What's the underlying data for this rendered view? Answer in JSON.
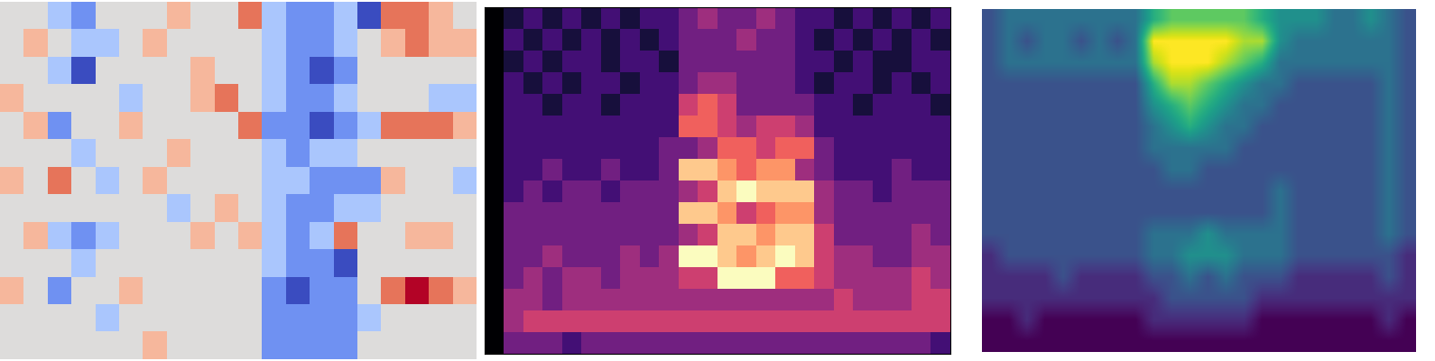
{
  "chart_data": [
    {
      "type": "heatmap",
      "tick_labels": false,
      "cells": [
        [
          6,
          6,
          5,
          4,
          6,
          6,
          6,
          7,
          6,
          6,
          8,
          5,
          4,
          4,
          5,
          3,
          8,
          8,
          7,
          6
        ],
        [
          6,
          7,
          6,
          5,
          5,
          6,
          7,
          6,
          6,
          6,
          6,
          5,
          4,
          4,
          5,
          6,
          7,
          8,
          7,
          7
        ],
        [
          6,
          6,
          5,
          3,
          6,
          6,
          6,
          6,
          7,
          6,
          6,
          5,
          4,
          3,
          4,
          6,
          6,
          6,
          6,
          6
        ],
        [
          7,
          6,
          6,
          6,
          6,
          5,
          6,
          6,
          7,
          8,
          6,
          5,
          4,
          4,
          5,
          6,
          6,
          6,
          5,
          5
        ],
        [
          6,
          7,
          4,
          6,
          6,
          7,
          6,
          6,
          6,
          6,
          8,
          4,
          4,
          3,
          4,
          5,
          8,
          8,
          8,
          7
        ],
        [
          6,
          6,
          6,
          5,
          6,
          6,
          6,
          7,
          6,
          6,
          6,
          5,
          4,
          5,
          5,
          6,
          6,
          6,
          6,
          6
        ],
        [
          7,
          6,
          8,
          6,
          5,
          6,
          7,
          6,
          6,
          6,
          6,
          5,
          5,
          4,
          4,
          4,
          7,
          6,
          6,
          5
        ],
        [
          6,
          6,
          6,
          6,
          6,
          6,
          6,
          5,
          6,
          7,
          6,
          5,
          4,
          4,
          5,
          5,
          6,
          6,
          6,
          6
        ],
        [
          6,
          7,
          5,
          4,
          5,
          6,
          6,
          6,
          7,
          6,
          7,
          5,
          4,
          5,
          8,
          6,
          6,
          7,
          7,
          6
        ],
        [
          6,
          6,
          6,
          5,
          6,
          6,
          6,
          6,
          6,
          6,
          6,
          5,
          4,
          4,
          3,
          6,
          6,
          6,
          6,
          6
        ],
        [
          7,
          6,
          4,
          6,
          6,
          7,
          6,
          6,
          6,
          6,
          6,
          4,
          3,
          4,
          4,
          6,
          8,
          9,
          8,
          7
        ],
        [
          6,
          6,
          6,
          6,
          5,
          6,
          6,
          6,
          6,
          6,
          6,
          4,
          4,
          4,
          4,
          5,
          6,
          6,
          6,
          6
        ],
        [
          6,
          6,
          6,
          6,
          6,
          6,
          7,
          6,
          6,
          6,
          6,
          4,
          4,
          4,
          4,
          6,
          6,
          6,
          6,
          6
        ]
      ]
    },
    {
      "type": "heatmap",
      "tick_labels": false,
      "cells": [
        [
          0,
          1,
          2,
          1,
          2,
          1,
          2,
          1,
          2,
          2,
          3,
          4,
          3,
          3,
          4,
          3,
          2,
          2,
          1,
          2,
          1,
          2,
          1,
          2
        ],
        [
          0,
          2,
          1,
          2,
          1,
          2,
          1,
          2,
          1,
          2,
          3,
          3,
          3,
          4,
          3,
          3,
          2,
          1,
          2,
          1,
          2,
          1,
          2,
          1
        ],
        [
          0,
          1,
          2,
          1,
          2,
          2,
          1,
          2,
          2,
          1,
          3,
          3,
          3,
          3,
          3,
          3,
          2,
          2,
          1,
          2,
          1,
          1,
          2,
          2
        ],
        [
          0,
          2,
          1,
          2,
          1,
          2,
          2,
          1,
          2,
          2,
          3,
          4,
          4,
          3,
          3,
          3,
          2,
          1,
          2,
          2,
          1,
          2,
          1,
          2
        ],
        [
          0,
          2,
          2,
          1,
          2,
          2,
          1,
          2,
          2,
          2,
          5,
          6,
          5,
          3,
          3,
          3,
          3,
          2,
          2,
          1,
          2,
          2,
          2,
          1
        ],
        [
          0,
          2,
          2,
          2,
          2,
          2,
          2,
          2,
          2,
          2,
          6,
          6,
          5,
          4,
          5,
          5,
          4,
          2,
          2,
          2,
          2,
          2,
          2,
          2
        ],
        [
          0,
          2,
          2,
          2,
          2,
          2,
          2,
          2,
          2,
          3,
          3,
          4,
          6,
          6,
          5,
          6,
          6,
          3,
          2,
          2,
          2,
          2,
          2,
          2
        ],
        [
          0,
          2,
          2,
          3,
          2,
          2,
          3,
          2,
          2,
          3,
          8,
          8,
          7,
          6,
          7,
          7,
          4,
          3,
          2,
          2,
          2,
          3,
          2,
          2
        ],
        [
          0,
          2,
          3,
          2,
          3,
          3,
          2,
          3,
          3,
          3,
          4,
          5,
          8,
          9,
          8,
          8,
          8,
          4,
          3,
          3,
          2,
          3,
          3,
          3
        ],
        [
          0,
          3,
          3,
          3,
          3,
          3,
          3,
          3,
          3,
          3,
          8,
          8,
          7,
          5,
          6,
          7,
          7,
          4,
          3,
          3,
          3,
          3,
          3,
          3
        ],
        [
          0,
          3,
          3,
          3,
          3,
          3,
          3,
          3,
          3,
          3,
          4,
          5,
          8,
          8,
          7,
          8,
          8,
          5,
          3,
          3,
          3,
          3,
          4,
          3
        ],
        [
          0,
          3,
          3,
          4,
          3,
          3,
          3,
          4,
          3,
          4,
          9,
          9,
          8,
          7,
          8,
          9,
          8,
          5,
          4,
          4,
          3,
          3,
          4,
          4
        ],
        [
          0,
          3,
          4,
          3,
          4,
          4,
          3,
          4,
          4,
          4,
          5,
          5,
          9,
          9,
          9,
          6,
          6,
          5,
          4,
          4,
          4,
          4,
          5,
          4
        ],
        [
          0,
          4,
          4,
          3,
          4,
          4,
          4,
          4,
          4,
          4,
          4,
          4,
          4,
          4,
          4,
          4,
          4,
          4,
          5,
          4,
          4,
          4,
          5,
          5
        ],
        [
          0,
          4,
          5,
          5,
          5,
          5,
          5,
          5,
          5,
          5,
          5,
          5,
          5,
          5,
          5,
          5,
          5,
          5,
          5,
          5,
          5,
          5,
          5,
          5
        ],
        [
          0,
          3,
          3,
          3,
          2,
          3,
          3,
          3,
          3,
          3,
          3,
          3,
          3,
          3,
          3,
          3,
          3,
          3,
          3,
          3,
          3,
          3,
          3,
          2
        ]
      ]
    },
    {
      "type": "heatmap",
      "tick_labels": false,
      "cells": [
        [
          3,
          4,
          4,
          4,
          4,
          4,
          4,
          4,
          4,
          6,
          7,
          7,
          7,
          7,
          7,
          6,
          5,
          5,
          5,
          4,
          4,
          5,
          4,
          3
        ],
        [
          3,
          4,
          3,
          4,
          4,
          3,
          4,
          3,
          4,
          9,
          9,
          9,
          9,
          9,
          8,
          8,
          5,
          4,
          4,
          4,
          4,
          4,
          4,
          3
        ],
        [
          3,
          4,
          4,
          4,
          4,
          4,
          4,
          4,
          4,
          8,
          9,
          9,
          9,
          8,
          7,
          6,
          4,
          4,
          4,
          4,
          4,
          4,
          4,
          3
        ],
        [
          3,
          3,
          3,
          3,
          3,
          3,
          3,
          3,
          3,
          6,
          8,
          8,
          7,
          6,
          5,
          4,
          4,
          3,
          3,
          3,
          3,
          3,
          4,
          3
        ],
        [
          3,
          3,
          3,
          3,
          3,
          3,
          3,
          3,
          3,
          5,
          6,
          7,
          6,
          5,
          4,
          4,
          3,
          3,
          3,
          3,
          3,
          3,
          4,
          3
        ],
        [
          3,
          3,
          3,
          3,
          3,
          3,
          3,
          3,
          3,
          4,
          5,
          6,
          5,
          4,
          4,
          3,
          3,
          3,
          3,
          3,
          3,
          3,
          4,
          3
        ],
        [
          3,
          3,
          3,
          3,
          3,
          3,
          3,
          3,
          3,
          4,
          4,
          4,
          4,
          4,
          3,
          3,
          3,
          3,
          3,
          3,
          3,
          3,
          4,
          3
        ],
        [
          3,
          3,
          3,
          3,
          3,
          3,
          3,
          3,
          3,
          3,
          4,
          4,
          3,
          3,
          3,
          3,
          3,
          3,
          3,
          3,
          3,
          3,
          4,
          3
        ],
        [
          3,
          3,
          3,
          3,
          3,
          3,
          3,
          3,
          3,
          3,
          3,
          3,
          3,
          3,
          3,
          3,
          4,
          3,
          3,
          3,
          3,
          3,
          4,
          3
        ],
        [
          3,
          3,
          3,
          3,
          3,
          3,
          3,
          3,
          3,
          3,
          3,
          3,
          3,
          3,
          3,
          3,
          4,
          3,
          3,
          3,
          3,
          3,
          4,
          3
        ],
        [
          3,
          3,
          3,
          3,
          3,
          3,
          3,
          3,
          3,
          4,
          4,
          4,
          5,
          4,
          4,
          4,
          4,
          3,
          3,
          3,
          3,
          3,
          4,
          3
        ],
        [
          2,
          3,
          3,
          3,
          3,
          3,
          3,
          3,
          3,
          4,
          4,
          5,
          5,
          5,
          4,
          4,
          4,
          3,
          3,
          3,
          3,
          3,
          3,
          2
        ],
        [
          2,
          2,
          2,
          2,
          3,
          2,
          2,
          2,
          2,
          3,
          3,
          4,
          3,
          4,
          3,
          3,
          3,
          2,
          2,
          2,
          2,
          2,
          3,
          2
        ],
        [
          2,
          2,
          2,
          2,
          2,
          2,
          2,
          2,
          2,
          2,
          3,
          3,
          3,
          3,
          3,
          2,
          2,
          2,
          2,
          2,
          2,
          2,
          2,
          2
        ],
        [
          1,
          1,
          2,
          1,
          1,
          1,
          1,
          1,
          1,
          2,
          2,
          2,
          2,
          2,
          2,
          1,
          1,
          1,
          1,
          1,
          1,
          1,
          2,
          1
        ],
        [
          1,
          1,
          1,
          1,
          1,
          1,
          1,
          1,
          1,
          1,
          1,
          1,
          1,
          1,
          1,
          1,
          1,
          1,
          1,
          1,
          1,
          1,
          1,
          1
        ]
      ]
    }
  ]
}
